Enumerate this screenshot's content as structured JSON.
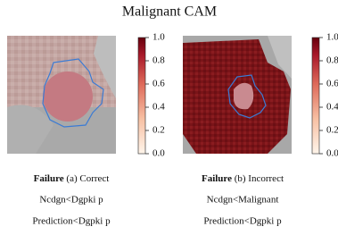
{
  "title": "Malignant CAM",
  "panels": [
    {
      "caption": {
        "lead": "Failure",
        "tag": "(a) Correct",
        "label_line": "Ncdgn<Dgpki p",
        "prediction_line": "Prediction<Dgpki p"
      },
      "colorbar": {
        "lim": [
          0,
          1
        ],
        "ticks": [
          {
            "value": 0,
            "label": "0.0"
          },
          {
            "value": 0.2,
            "label": "0.2"
          },
          {
            "value": 0.4,
            "label": "0.4"
          },
          {
            "value": 0.6,
            "label": "0.6"
          },
          {
            "value": 0.8,
            "label": "0.8"
          },
          {
            "value": 1,
            "label": "1.0"
          }
        ]
      }
    },
    {
      "caption": {
        "lead": "Failure",
        "tag": "(b) Incorrect",
        "label_line": "Ncdgn<Malignant",
        "prediction_line": "Prediction<Dgpki p"
      },
      "colorbar": {
        "lim": [
          0,
          1
        ],
        "ticks": [
          {
            "value": 0,
            "label": "0.0"
          },
          {
            "value": 0.2,
            "label": "0.2"
          },
          {
            "value": 0.4,
            "label": "0.4"
          },
          {
            "value": 0.6,
            "label": "0.6"
          },
          {
            "value": 0.8,
            "label": "0.8"
          },
          {
            "value": 1,
            "label": "1.0"
          }
        ]
      }
    }
  ]
}
